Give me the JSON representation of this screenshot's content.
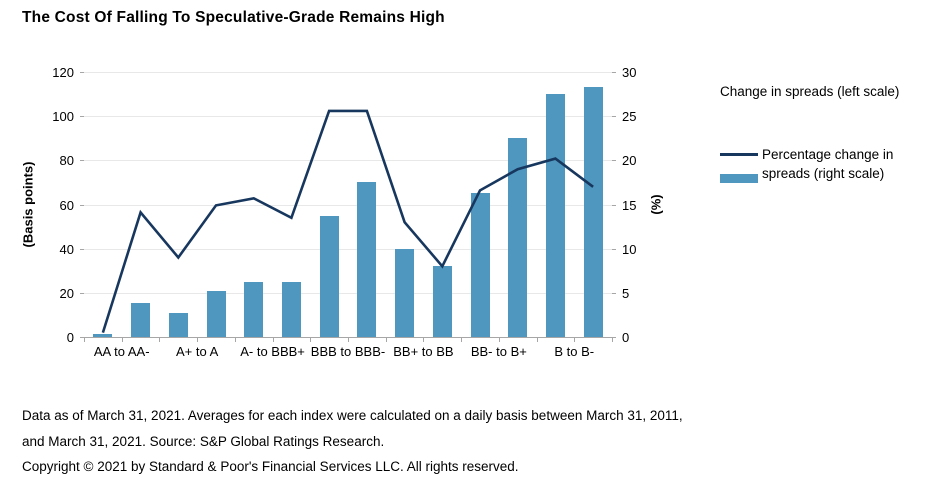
{
  "title": "The Cost Of Falling To Speculative-Grade Remains High",
  "chart_data": {
    "type": "bar",
    "subtype": "bar-and-line-combo",
    "categories": [
      "AA to AA-",
      "A+ to A",
      "A- to BBB+",
      "BBB to BBB-",
      "BB+ to BB",
      "BB- to B+",
      "B to B-"
    ],
    "bars_per_category": 2,
    "series": [
      {
        "name": "Change in spreads (left scale)",
        "type": "bar",
        "axis": "left",
        "values": [
          1.5,
          15.5,
          11,
          21,
          25,
          25,
          55,
          70,
          40,
          32,
          65,
          90,
          110,
          113
        ]
      },
      {
        "name": "Percentage change in spreads (right scale)",
        "type": "line",
        "axis": "right",
        "values": [
          0.5,
          14.1,
          9.0,
          14.9,
          15.7,
          13.5,
          25.6,
          25.6,
          13.0,
          8.0,
          16.6,
          19.0,
          20.2,
          17.0
        ]
      }
    ],
    "left_axis": {
      "label": "(Basis points)",
      "min": 0,
      "max": 120,
      "step": 20
    },
    "right_axis": {
      "label": "(%)",
      "min": 0,
      "max": 30,
      "step": 5
    },
    "grid": true,
    "legend_position": "right"
  },
  "legend": {
    "items": [
      {
        "label": "Change in spreads (left scale)",
        "swatch": "bar"
      },
      {
        "label": "Percentage change in spreads (right scale)",
        "swatch": "line"
      }
    ]
  },
  "colors": {
    "bar": "#4F97BF",
    "line": "#17375E",
    "grid": "#E8E8E8",
    "axis": "#A6A6A6",
    "text": "#000000"
  },
  "footer": {
    "lines": [
      "Data as of March 31, 2021. Averages for each index were calculated on a daily basis between March 31, 2011,",
      "and March 31, 2021. Source: S&P Global Ratings Research.",
      "Copyright © 2021 by Standard & Poor's Financial Services LLC. All rights reserved."
    ]
  }
}
